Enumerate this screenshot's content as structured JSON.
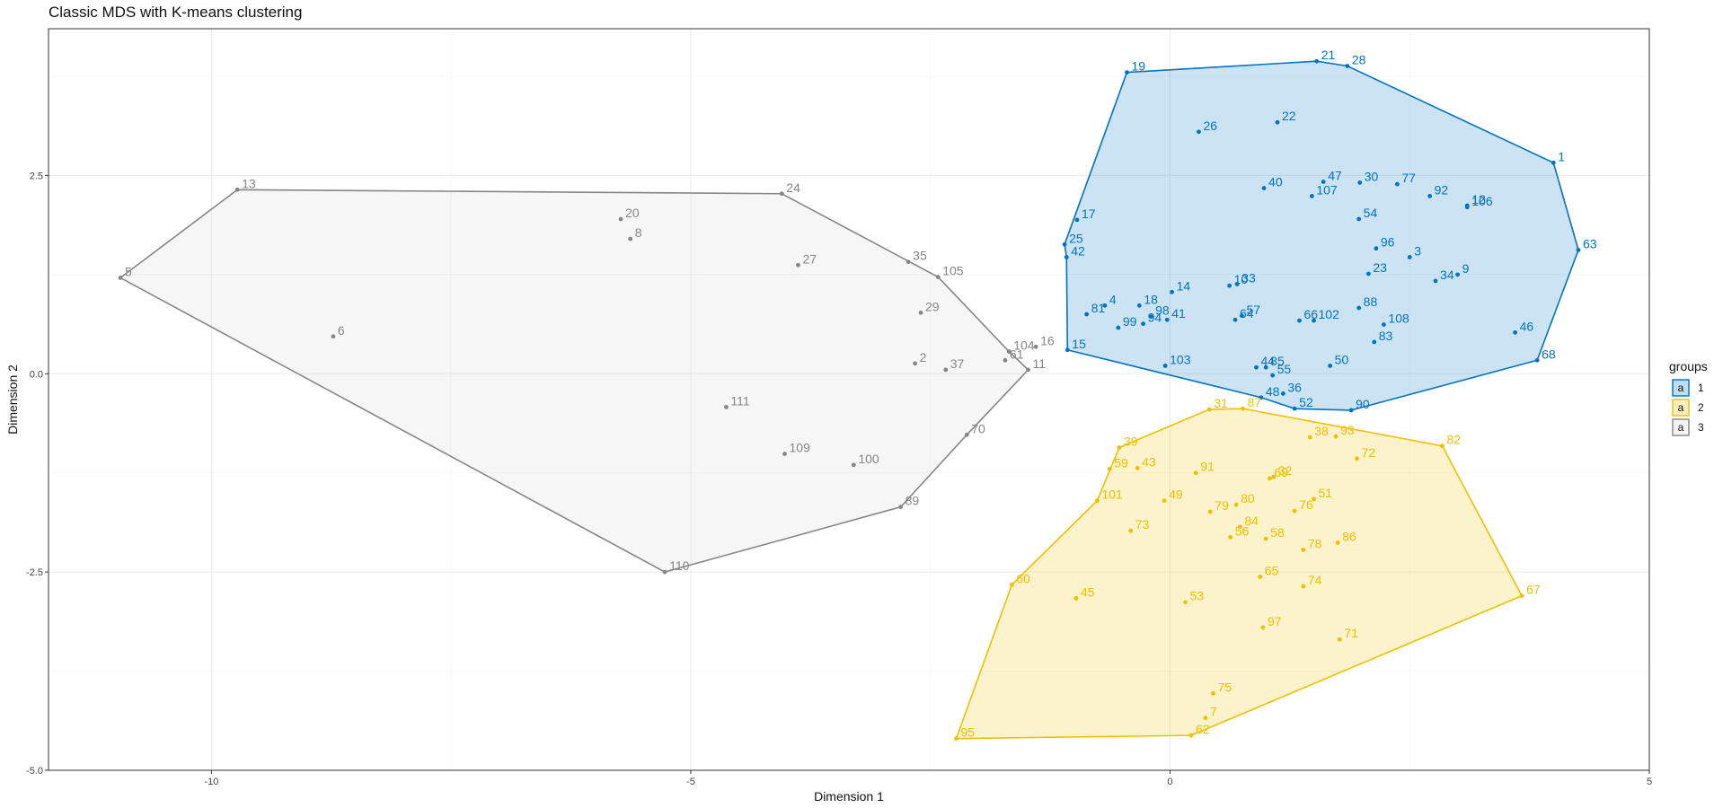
{
  "chart_data": {
    "type": "scatter",
    "title": "Classic MDS with K-means clustering",
    "xlabel": "Dimension 1",
    "ylabel": "Dimension 2",
    "xlim": [
      -11.7,
      5
    ],
    "ylim": [
      -5,
      4.35
    ],
    "x_ticks": [
      -10,
      -5,
      0,
      5
    ],
    "x_tick_labels": [
      "-10",
      "-5",
      "0",
      "5"
    ],
    "y_ticks": [
      -5,
      -2.5,
      0,
      2.5
    ],
    "y_tick_labels": [
      "-5.0",
      "-2.5",
      "0.0",
      "2.5"
    ],
    "grid": true,
    "legend": {
      "title": "groups",
      "position": "right",
      "entries": [
        {
          "label": "1",
          "symbol": "a"
        },
        {
          "label": "2",
          "symbol": "a"
        },
        {
          "label": "3",
          "symbol": "a"
        }
      ]
    },
    "series": [
      {
        "name": "1",
        "color": "#0073C2",
        "fill": "#0073C2",
        "hull": [
          "19",
          "21",
          "28",
          "1",
          "63",
          "68",
          "90",
          "52",
          "48",
          "15",
          "42",
          "25"
        ],
        "points": [
          {
            "label": "1",
            "x": 4.0,
            "y": 2.66
          },
          {
            "label": "3",
            "x": 2.5,
            "y": 1.47
          },
          {
            "label": "4",
            "x": -0.68,
            "y": 0.86
          },
          {
            "label": "9",
            "x": 3.0,
            "y": 1.25
          },
          {
            "label": "10",
            "x": 0.62,
            "y": 1.11
          },
          {
            "label": "12",
            "x": 3.1,
            "y": 2.12
          },
          {
            "label": "14",
            "x": 0.02,
            "y": 1.03
          },
          {
            "label": "15",
            "x": -1.07,
            "y": 0.3
          },
          {
            "label": "17",
            "x": -0.97,
            "y": 1.94
          },
          {
            "label": "18",
            "x": -0.32,
            "y": 0.86
          },
          {
            "label": "19",
            "x": -0.45,
            "y": 3.8
          },
          {
            "label": "21",
            "x": 1.53,
            "y": 3.94
          },
          {
            "label": "22",
            "x": 1.12,
            "y": 3.17
          },
          {
            "label": "23",
            "x": 2.07,
            "y": 1.26
          },
          {
            "label": "25",
            "x": -1.1,
            "y": 1.63
          },
          {
            "label": "26",
            "x": 0.3,
            "y": 3.05
          },
          {
            "label": "28",
            "x": 1.85,
            "y": 3.88
          },
          {
            "label": "30",
            "x": 1.98,
            "y": 2.41
          },
          {
            "label": "33",
            "x": 0.7,
            "y": 1.13
          },
          {
            "label": "34",
            "x": 2.77,
            "y": 1.17
          },
          {
            "label": "36",
            "x": 1.18,
            "y": -0.25
          },
          {
            "label": "40",
            "x": 0.98,
            "y": 2.34
          },
          {
            "label": "41",
            "x": -0.03,
            "y": 0.68
          },
          {
            "label": "42",
            "x": -1.08,
            "y": 1.47
          },
          {
            "label": "44",
            "x": 0.9,
            "y": 0.08
          },
          {
            "label": "46",
            "x": 3.6,
            "y": 0.52
          },
          {
            "label": "47",
            "x": 1.6,
            "y": 2.42
          },
          {
            "label": "48",
            "x": 0.95,
            "y": -0.3
          },
          {
            "label": "50",
            "x": 1.67,
            "y": 0.1
          },
          {
            "label": "52",
            "x": 1.3,
            "y": -0.44
          },
          {
            "label": "54",
            "x": 1.97,
            "y": 1.95
          },
          {
            "label": "55",
            "x": 1.07,
            "y": -0.02
          },
          {
            "label": "57",
            "x": 0.75,
            "y": 0.73
          },
          {
            "label": "63",
            "x": 4.26,
            "y": 1.56
          },
          {
            "label": "64",
            "x": 0.68,
            "y": 0.68
          },
          {
            "label": "66",
            "x": 1.35,
            "y": 0.67
          },
          {
            "label": "68",
            "x": 3.83,
            "y": 0.17
          },
          {
            "label": "77",
            "x": 2.37,
            "y": 2.39
          },
          {
            "label": "81",
            "x": -0.87,
            "y": 0.75
          },
          {
            "label": "83",
            "x": 2.13,
            "y": 0.4
          },
          {
            "label": "85",
            "x": 1.0,
            "y": 0.08
          },
          {
            "label": "88",
            "x": 1.97,
            "y": 0.83
          },
          {
            "label": "90",
            "x": 1.89,
            "y": -0.46
          },
          {
            "label": "92",
            "x": 2.71,
            "y": 2.24
          },
          {
            "label": "94",
            "x": -0.28,
            "y": 0.63
          },
          {
            "label": "96",
            "x": 2.15,
            "y": 1.58
          },
          {
            "label": "98",
            "x": -0.2,
            "y": 0.72
          },
          {
            "label": "99",
            "x": -0.54,
            "y": 0.58
          },
          {
            "label": "102",
            "x": 1.5,
            "y": 0.67
          },
          {
            "label": "103",
            "x": -0.05,
            "y": 0.1
          },
          {
            "label": "106",
            "x": 3.1,
            "y": 2.1
          },
          {
            "label": "107",
            "x": 1.48,
            "y": 2.24
          },
          {
            "label": "108",
            "x": 2.23,
            "y": 0.62
          }
        ]
      },
      {
        "name": "2",
        "color": "#EFC000",
        "fill": "#EFC000",
        "hull": [
          "39",
          "31",
          "87",
          "82",
          "67",
          "62",
          "95",
          "60",
          "101"
        ],
        "points": [
          {
            "label": "7",
            "x": 0.37,
            "y": -4.34
          },
          {
            "label": "31",
            "x": 0.41,
            "y": -0.45
          },
          {
            "label": "32",
            "x": 1.08,
            "y": -1.3
          },
          {
            "label": "38",
            "x": 1.46,
            "y": -0.8
          },
          {
            "label": "39",
            "x": -0.53,
            "y": -0.93
          },
          {
            "label": "43",
            "x": -0.34,
            "y": -1.19
          },
          {
            "label": "45",
            "x": -0.98,
            "y": -2.83
          },
          {
            "label": "49",
            "x": -0.06,
            "y": -1.6
          },
          {
            "label": "51",
            "x": 1.5,
            "y": -1.58
          },
          {
            "label": "53",
            "x": 0.16,
            "y": -2.88
          },
          {
            "label": "56",
            "x": 0.63,
            "y": -2.06
          },
          {
            "label": "58",
            "x": 1.0,
            "y": -2.08
          },
          {
            "label": "59",
            "x": -0.63,
            "y": -1.2
          },
          {
            "label": "60",
            "x": -1.65,
            "y": -2.66
          },
          {
            "label": "62",
            "x": 0.22,
            "y": -4.56
          },
          {
            "label": "65",
            "x": 0.94,
            "y": -2.56
          },
          {
            "label": "67",
            "x": 3.67,
            "y": -2.8
          },
          {
            "label": "69",
            "x": 1.04,
            "y": -1.32
          },
          {
            "label": "71",
            "x": 1.77,
            "y": -3.35
          },
          {
            "label": "72",
            "x": 1.95,
            "y": -1.07
          },
          {
            "label": "73",
            "x": -0.41,
            "y": -1.98
          },
          {
            "label": "74",
            "x": 1.39,
            "y": -2.68
          },
          {
            "label": "75",
            "x": 0.45,
            "y": -4.03
          },
          {
            "label": "76",
            "x": 1.3,
            "y": -1.73
          },
          {
            "label": "78",
            "x": 1.39,
            "y": -2.22
          },
          {
            "label": "79",
            "x": 0.42,
            "y": -1.74
          },
          {
            "label": "80",
            "x": 0.69,
            "y": -1.65
          },
          {
            "label": "82",
            "x": 2.84,
            "y": -0.91
          },
          {
            "label": "84",
            "x": 0.73,
            "y": -1.93
          },
          {
            "label": "86",
            "x": 1.75,
            "y": -2.13
          },
          {
            "label": "87",
            "x": 0.76,
            "y": -0.44
          },
          {
            "label": "91",
            "x": 0.27,
            "y": -1.25
          },
          {
            "label": "93",
            "x": 1.73,
            "y": -0.79
          },
          {
            "label": "95",
            "x": -2.23,
            "y": -4.6
          },
          {
            "label": "97",
            "x": 0.97,
            "y": -3.2
          },
          {
            "label": "101",
            "x": -0.76,
            "y": -1.6
          }
        ]
      },
      {
        "name": "3",
        "color": "#868686",
        "fill": "#D3D3D3",
        "hull": [
          "13",
          "24",
          "105",
          "104",
          "11",
          "70",
          "89",
          "110",
          "5"
        ],
        "points": [
          {
            "label": "2",
            "x": -2.66,
            "y": 0.13
          },
          {
            "label": "5",
            "x": -10.95,
            "y": 1.21
          },
          {
            "label": "6",
            "x": -8.73,
            "y": 0.47
          },
          {
            "label": "8",
            "x": -5.63,
            "y": 1.7
          },
          {
            "label": "11",
            "x": -1.48,
            "y": 0.05
          },
          {
            "label": "13",
            "x": -9.73,
            "y": 2.32
          },
          {
            "label": "16",
            "x": -1.4,
            "y": 0.34
          },
          {
            "label": "20",
            "x": -5.73,
            "y": 1.95
          },
          {
            "label": "24",
            "x": -4.05,
            "y": 2.27
          },
          {
            "label": "27",
            "x": -3.88,
            "y": 1.37
          },
          {
            "label": "29",
            "x": -2.6,
            "y": 0.77
          },
          {
            "label": "35",
            "x": -2.73,
            "y": 1.41
          },
          {
            "label": "37",
            "x": -2.34,
            "y": 0.05
          },
          {
            "label": "61",
            "x": -1.72,
            "y": 0.17
          },
          {
            "label": "70",
            "x": -2.12,
            "y": -0.77
          },
          {
            "label": "89",
            "x": -2.81,
            "y": -1.68
          },
          {
            "label": "100",
            "x": -3.3,
            "y": -1.15
          },
          {
            "label": "104",
            "x": -1.68,
            "y": 0.28
          },
          {
            "label": "105",
            "x": -2.42,
            "y": 1.22
          },
          {
            "label": "109",
            "x": -4.02,
            "y": -1.01
          },
          {
            "label": "110",
            "x": -5.27,
            "y": -2.5
          },
          {
            "label": "111",
            "x": -4.63,
            "y": -0.42
          }
        ]
      }
    ]
  }
}
